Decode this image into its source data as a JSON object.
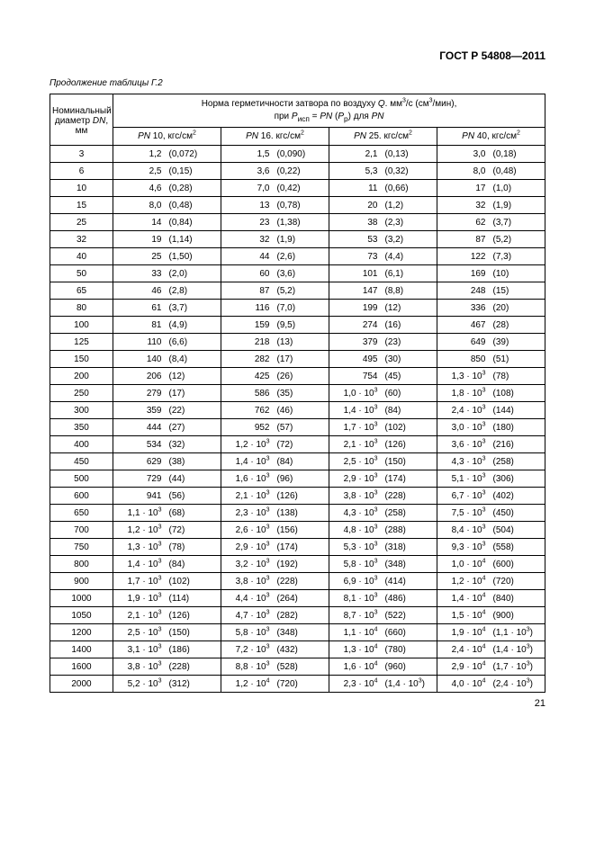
{
  "doc_id": "ГОСТ Р 54808—2011",
  "caption": "Продолжение таблицы Г.2",
  "page_number": "21",
  "header": {
    "dn_label": "Номинальный диаметр <i>DN</i>, мм",
    "title_line1": "Норма герметичности затвора по воздуху <i>Q</i>. мм<sup>3</sup>/с (см<sup>3</sup>/мин),",
    "title_line2": "при <i>P</i><sub>исп</sub> = <i>PN</i> (<i>P</i><sub>р</sub>) для <i>PN</i>",
    "pn_labels": [
      "<i>PN</i> 10, кгс/см<sup>2</sup>",
      "<i>PN</i> 16. кгс/см<sup>2</sup>",
      "<i>PN</i> 25. кгс/см<sup>2</sup>",
      "<i>PN</i> 40, кгс/см<sup>2</sup>"
    ]
  },
  "rows": [
    {
      "dn": "3",
      "v": [
        "1,2",
        "(0,072)",
        "1,5",
        "(0,090)",
        "2,1",
        "(0,13)",
        "3,0",
        "(0,18)"
      ]
    },
    {
      "dn": "6",
      "v": [
        "2,5",
        "(0,15)",
        "3,6",
        "(0,22)",
        "5,3",
        "(0,32)",
        "8,0",
        "(0,48)"
      ]
    },
    {
      "dn": "10",
      "v": [
        "4,6",
        "(0,28)",
        "7,0",
        "(0,42)",
        "11",
        "(0,66)",
        "17",
        "(1,0)"
      ]
    },
    {
      "dn": "15",
      "v": [
        "8,0",
        "(0,48)",
        "13",
        "(0,78)",
        "20",
        "(1,2)",
        "32",
        "(1,9)"
      ]
    },
    {
      "dn": "25",
      "v": [
        "14",
        "(0,84)",
        "23",
        "(1,38)",
        "38",
        "(2,3)",
        "62",
        "(3,7)"
      ]
    },
    {
      "dn": "32",
      "v": [
        "19",
        "(1,14)",
        "32",
        "(1,9)",
        "53",
        "(3,2)",
        "87",
        "(5,2)"
      ]
    },
    {
      "dn": "40",
      "v": [
        "25",
        "(1,50)",
        "44",
        "(2,6)",
        "73",
        "(4,4)",
        "122",
        "(7,3)"
      ]
    },
    {
      "dn": "50",
      "v": [
        "33",
        "(2,0)",
        "60",
        "(3,6)",
        "101",
        "(6,1)",
        "169",
        "(10)"
      ]
    },
    {
      "dn": "65",
      "v": [
        "46",
        "(2,8)",
        "87",
        "(5,2)",
        "147",
        "(8,8)",
        "248",
        "(15)"
      ]
    },
    {
      "dn": "80",
      "v": [
        "61",
        "(3,7)",
        "116",
        "(7,0)",
        "199",
        "(12)",
        "336",
        "(20)"
      ]
    },
    {
      "dn": "100",
      "v": [
        "81",
        "(4,9)",
        "159",
        "(9,5)",
        "274",
        "(16)",
        "467",
        "(28)"
      ]
    },
    {
      "dn": "125",
      "v": [
        "110",
        "(6,6)",
        "218",
        "(13)",
        "379",
        "(23)",
        "649",
        "(39)"
      ]
    },
    {
      "dn": "150",
      "v": [
        "140",
        "(8,4)",
        "282",
        "(17)",
        "495",
        "(30)",
        "850",
        "(51)"
      ]
    },
    {
      "dn": "200",
      "v": [
        "206",
        "(12)",
        "425",
        "(26)",
        "754",
        "(45)",
        "1,3 · 10<sup>3</sup>",
        "(78)"
      ]
    },
    {
      "dn": "250",
      "v": [
        "279",
        "(17)",
        "586",
        "(35)",
        "1,0 · 10<sup>3</sup>",
        "(60)",
        "1,8 · 10<sup>3</sup>",
        "(108)"
      ]
    },
    {
      "dn": "300",
      "v": [
        "359",
        "(22)",
        "762",
        "(46)",
        "1,4 · 10<sup>3</sup>",
        "(84)",
        "2,4 · 10<sup>3</sup>",
        "(144)"
      ]
    },
    {
      "dn": "350",
      "v": [
        "444",
        "(27)",
        "952",
        "(57)",
        "1,7 · 10<sup>3</sup>",
        "(102)",
        "3,0 · 10<sup>3</sup>",
        "(180)"
      ]
    },
    {
      "dn": "400",
      "v": [
        "534",
        "(32)",
        "1,2 · 10<sup>3</sup>",
        "(72)",
        "2,1 · 10<sup>3</sup>",
        "(126)",
        "3,6 · 10<sup>3</sup>",
        "(216)"
      ]
    },
    {
      "dn": "450",
      "v": [
        "629",
        "(38)",
        "1,4 · 10<sup>3</sup>",
        "(84)",
        "2,5 · 10<sup>3</sup>",
        "(150)",
        "4,3 · 10<sup>3</sup>",
        "(258)"
      ]
    },
    {
      "dn": "500",
      "v": [
        "729",
        "(44)",
        "1,6 · 10<sup>3</sup>",
        "(96)",
        "2,9 · 10<sup>3</sup>",
        "(174)",
        "5,1 · 10<sup>3</sup>",
        "(306)"
      ]
    },
    {
      "dn": "600",
      "v": [
        "941",
        "(56)",
        "2,1 · 10<sup>3</sup>",
        "(126)",
        "3,8 · 10<sup>3</sup>",
        "(228)",
        "6,7 · 10<sup>3</sup>",
        "(402)"
      ]
    },
    {
      "dn": "650",
      "v": [
        "1,1 · 10<sup>3</sup>",
        "(68)",
        "2,3 · 10<sup>3</sup>",
        "(138)",
        "4,3 · 10<sup>3</sup>",
        "(258)",
        "7,5 · 10<sup>3</sup>",
        "(450)"
      ]
    },
    {
      "dn": "700",
      "v": [
        "1,2 · 10<sup>3</sup>",
        "(72)",
        "2,6 · 10<sup>3</sup>",
        "(156)",
        "4,8 · 10<sup>3</sup>",
        "(288)",
        "8,4 · 10<sup>3</sup>",
        "(504)"
      ]
    },
    {
      "dn": "750",
      "v": [
        "1,3 · 10<sup>3</sup>",
        "(78)",
        "2,9 · 10<sup>3</sup>",
        "(174)",
        "5,3 · 10<sup>3</sup>",
        "(318)",
        "9,3 · 10<sup>3</sup>",
        "(558)"
      ]
    },
    {
      "dn": "800",
      "v": [
        "1,4 · 10<sup>3</sup>",
        "(84)",
        "3,2 · 10<sup>3</sup>",
        "(192)",
        "5,8 · 10<sup>3</sup>",
        "(348)",
        "1,0 · 10<sup>4</sup>",
        "(600)"
      ]
    },
    {
      "dn": "900",
      "v": [
        "1,7 · 10<sup>3</sup>",
        "(102)",
        "3,8 · 10<sup>3</sup>",
        "(228)",
        "6,9 · 10<sup>3</sup>",
        "(414)",
        "1,2 · 10<sup>4</sup>",
        "(720)"
      ]
    },
    {
      "dn": "1000",
      "v": [
        "1,9 · 10<sup>3</sup>",
        "(114)",
        "4,4 · 10<sup>3</sup>",
        "(264)",
        "8,1 · 10<sup>3</sup>",
        "(486)",
        "1,4 · 10<sup>4</sup>",
        "(840)"
      ]
    },
    {
      "dn": "1050",
      "v": [
        "2,1 · 10<sup>3</sup>",
        "(126)",
        "4,7 · 10<sup>3</sup>",
        "(282)",
        "8,7 · 10<sup>3</sup>",
        "(522)",
        "1,5 · 10<sup>4</sup>",
        "(900)"
      ]
    },
    {
      "dn": "1200",
      "v": [
        "2,5 · 10<sup>3</sup>",
        "(150)",
        "5,8 · 10<sup>3</sup>",
        "(348)",
        "1,1 · 10<sup>4</sup>",
        "(660)",
        "1,9 · 10<sup>4</sup>",
        "(1,1 · 10<sup>3</sup>)"
      ]
    },
    {
      "dn": "1400",
      "v": [
        "3,1 · 10<sup>3</sup>",
        "(186)",
        "7,2 · 10<sup>3</sup>",
        "(432)",
        "1,3 · 10<sup>4</sup>",
        "(780)",
        "2,4 · 10<sup>4</sup>",
        "(1,4 · 10<sup>3</sup>)"
      ]
    },
    {
      "dn": "1600",
      "v": [
        "3,8 · 10<sup>3</sup>",
        "(228)",
        "8,8 · 10<sup>3</sup>",
        "(528)",
        "1,6 · 10<sup>4</sup>",
        "(960)",
        "2,9 · 10<sup>4</sup>",
        "(1,7 · 10<sup>3</sup>)"
      ]
    },
    {
      "dn": "2000",
      "v": [
        "5,2 · 10<sup>3</sup>",
        "(312)",
        "1,2 · 10<sup>4</sup>",
        "(720)",
        "2,3 · 10<sup>4</sup>",
        "(1,4 · 10<sup>3</sup>)",
        "4,0 · 10<sup>4</sup>",
        "(2,4 · 10<sup>3</sup>)"
      ]
    }
  ]
}
